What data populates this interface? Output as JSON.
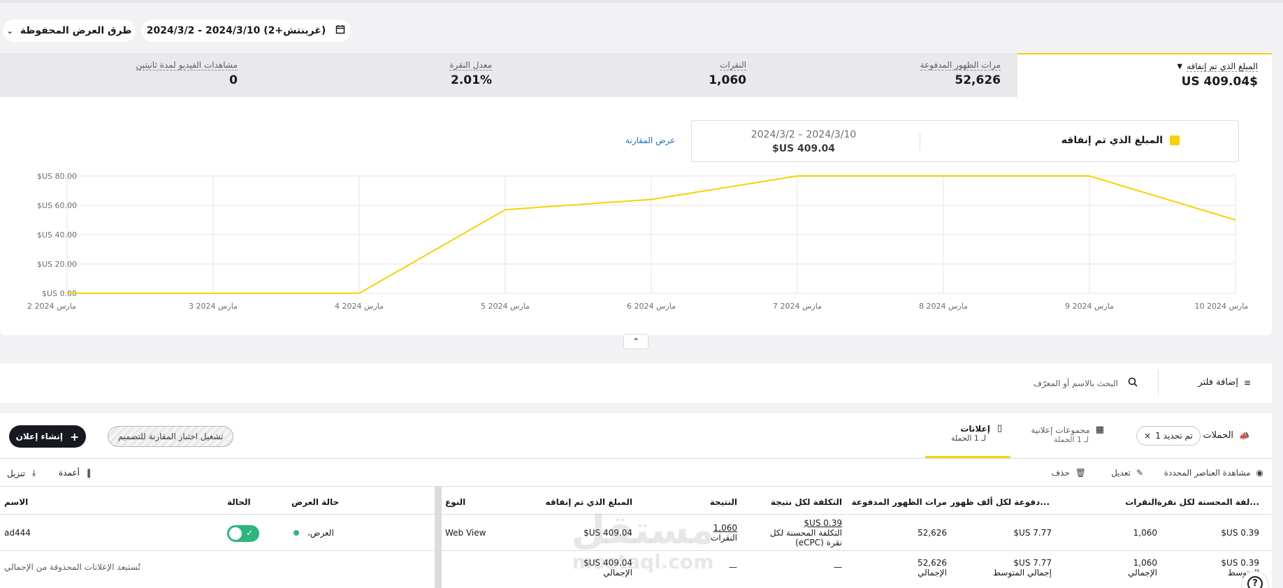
{
  "topbar": {
    "date_range": "2024/3/2 - 2024/3/10 (غرينتش+2)",
    "saved_views": "طرق العرض المحفوظة"
  },
  "metrics": [
    {
      "label": "المبلغ الذي تم إنفاقه",
      "value": "$US 409.04"
    },
    {
      "label": "مرات الظهور المدفوعة",
      "value": "52,626"
    },
    {
      "label": "النقرات",
      "value": "1,060"
    },
    {
      "label": "معدل النقرة",
      "value": "2.01%"
    },
    {
      "label": "مشاهدات الفيديو لمدة ثانيتين",
      "value": "0"
    }
  ],
  "legend": {
    "metric_name": "المبلغ الذي تم إنفاقه",
    "range": "2024/3/2 – 2024/3/10",
    "total": "$US 409.04",
    "compare_link": "عرض المقارنة",
    "color": "#f5d300"
  },
  "chart_data": {
    "type": "line",
    "categories": [
      "2 مارس 2024",
      "3 مارس 2024",
      "4 مارس 2024",
      "5 مارس 2024",
      "6 مارس 2024",
      "7 مارس 2024",
      "8 مارس 2024",
      "9 مارس 2024",
      "10 مارس 2024"
    ],
    "values": [
      0,
      0,
      0,
      57,
      64,
      80,
      80,
      80,
      50
    ],
    "ytick_labels": [
      "$US 0.00",
      "$US 20.00",
      "$US 40.00",
      "$US 60.00",
      "$US 80.00"
    ],
    "ylim": [
      0,
      80
    ],
    "grid": true,
    "color": "#f5d300"
  },
  "filter": {
    "add_filter": "إضافة فلتر",
    "search_placeholder": "البحث بالاسم أو المعرّف"
  },
  "tabs": {
    "campaigns": "الحملات",
    "selected_chip": "تم تحديد 1",
    "adgroups": {
      "label": "مجموعات إعلانية",
      "sub": "لـ 1 الحملة"
    },
    "ads": {
      "label": "إعلانات",
      "sub": "لـ 1 الحملة"
    },
    "split_test": "تشغيل اختبار المقارنة للتصميم",
    "create_ad": "إنشاء إعلان"
  },
  "toolbar": {
    "view_selected": "مشاهدة العناصر المحددة",
    "edit": "تعديل",
    "delete": "حذف",
    "columns": "أعمدة",
    "download": "تنزيل"
  },
  "table": {
    "headers": {
      "name": "الاسم",
      "status": "الحالة",
      "delivery": "حالة العرض",
      "type": "النوع",
      "spend": "المبلغ الذي تم إنفاقه",
      "result": "النتيجة",
      "cost_per_result": "التكلفة لكل نتيجة",
      "impressions": "مرات الظهور المدفوعة",
      "cpm": "...دفوعة لكل ألف ظهور",
      "clicks": "النقرات",
      "ecpc": "...لفة المحسنة لكل نقرة"
    },
    "row": {
      "name": "ad444",
      "delivery": "العرض،",
      "type": "Web View",
      "spend": "409.04 US$",
      "result": "1,060",
      "result_sub": "النقرات",
      "cost_per_result": "0.39 US$",
      "cost_per_result_sub": "التكلفة المحسنة لكل نقرة (eCPC)",
      "impressions": "52,626",
      "cpm": "7.77 US$",
      "clicks": "1,060",
      "ecpc": "0.39 US$"
    },
    "totals": {
      "note": "تُستبعد الإعلانات المحذوفة من الإجمالي",
      "spend": "409.04 US$",
      "spend_sub": "الإجمالي",
      "result": "—",
      "cost_per_result": "—",
      "impressions": "52,626",
      "impressions_sub": "الإجمالي",
      "cpm": "7.77 US$",
      "cpm_sub": "إجمالي المتوسط",
      "clicks": "1,060",
      "clicks_sub": "الإجمالي",
      "ecpc": "0.39 US$",
      "ecpc_sub": "المتوسط"
    }
  },
  "watermark": {
    "arabic": "مستقل",
    "latin": "mostaql.com"
  }
}
